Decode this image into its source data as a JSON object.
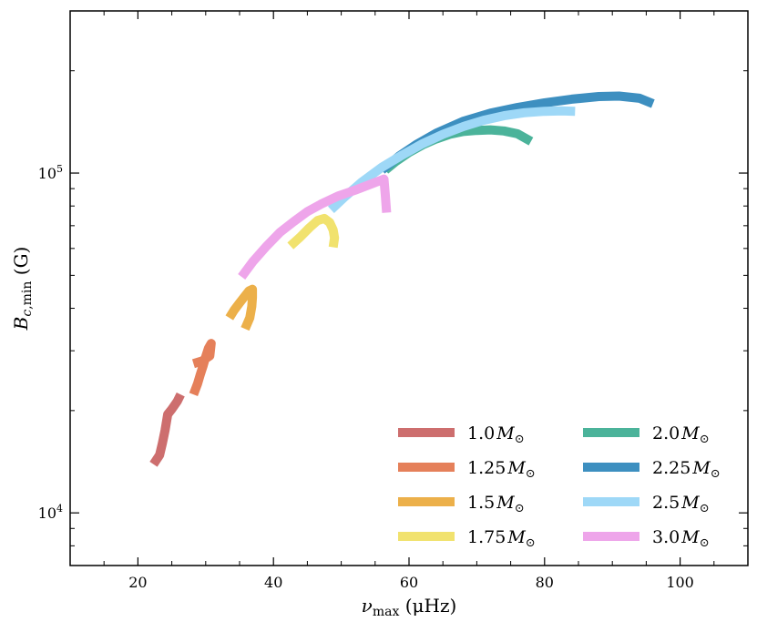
{
  "chart_data": {
    "type": "line",
    "title": "",
    "xlabel": "νmax (μHz)",
    "ylabel": "Bc,min (G)",
    "xlim": [
      10,
      110
    ],
    "ylim": [
      7000,
      300000
    ],
    "yscale": "log",
    "x_ticks": [
      20,
      40,
      60,
      80,
      100
    ],
    "x_tick_labels": [
      "20",
      "40",
      "60",
      "80",
      "100"
    ],
    "y_ticks": [
      10000,
      100000
    ],
    "y_tick_labels": [
      "10^4",
      "10^5"
    ],
    "legend_position": "lower-right",
    "legend_columns": 2,
    "series": [
      {
        "name": "1.0 M⊙",
        "color": "#cd6e6e",
        "x": [
          22.3,
          23.2,
          23.6,
          24.0,
          24.4,
          25.0,
          25.8,
          26.3
        ],
        "y": [
          13900,
          14800,
          16000,
          17500,
          19500,
          20200,
          21300,
          22300
        ]
      },
      {
        "name": "1.25 M⊙",
        "color": "#e5805a",
        "x": [
          28.2,
          28.8,
          29.2,
          29.6,
          30.0,
          30.4,
          30.8,
          30.6,
          29.5,
          28.2
        ],
        "y": [
          22300,
          24000,
          25500,
          27000,
          28800,
          30500,
          31500,
          29000,
          28000,
          27500
        ]
      },
      {
        "name": "1.5 M⊙",
        "color": "#ecb04a",
        "x": [
          33.5,
          34.2,
          35.0,
          35.8,
          36.4,
          36.9,
          36.9,
          36.8,
          36.5,
          35.8
        ],
        "y": [
          37500,
          39500,
          41500,
          43500,
          45000,
          45500,
          43000,
          40500,
          37500,
          34800
        ]
      },
      {
        "name": "1.75 M⊙",
        "color": "#f1e26e",
        "x": [
          42.5,
          44.0,
          45.3,
          46.5,
          47.5,
          48.3,
          48.8,
          49.0,
          48.8
        ],
        "y": [
          61000,
          65000,
          69000,
          72500,
          73500,
          71500,
          68000,
          64500,
          60500
        ]
      },
      {
        "name": "2.0 M⊙",
        "color": "#4bb39a",
        "x": [
          56.5,
          58.0,
          60.0,
          62.0,
          64.0,
          66.0,
          68.0,
          70.0,
          72.0,
          74.0,
          76.0,
          78.0
        ],
        "y": [
          102000,
          108000,
          115000,
          121000,
          126000,
          130000,
          132500,
          133500,
          134000,
          133000,
          130500,
          124000
        ]
      },
      {
        "name": "2.25 M⊙",
        "color": "#3d8fc0",
        "x": [
          56.0,
          58.5,
          61.0,
          64.0,
          68.0,
          72.0,
          76.0,
          80.0,
          84.0,
          88.0,
          91.0,
          94.0,
          96.0
        ],
        "y": [
          102000,
          112000,
          121000,
          131000,
          142000,
          150000,
          156000,
          161000,
          165000,
          168000,
          168500,
          166000,
          160000
        ]
      },
      {
        "name": "2.5 M⊙",
        "color": "#9ed8f7",
        "x": [
          48.5,
          50.5,
          53.0,
          56.0,
          59.0,
          62.0,
          65.0,
          68.0,
          71.0,
          74.0,
          77.0,
          80.0,
          82.5,
          84.5
        ],
        "y": [
          78000,
          85000,
          94000,
          104000,
          113000,
          122000,
          130000,
          137000,
          143000,
          147500,
          150500,
          152000,
          152500,
          152000
        ]
      },
      {
        "name": "3.0 M⊙",
        "color": "#eea5ea",
        "x": [
          35.3,
          37.0,
          39.0,
          41.0,
          43.0,
          45.0,
          47.0,
          49.5,
          52.0,
          54.5,
          56.3,
          56.5,
          56.7
        ],
        "y": [
          49500,
          55000,
          61000,
          67000,
          72000,
          77000,
          81000,
          85500,
          89000,
          93000,
          96000,
          86000,
          76500
        ]
      }
    ]
  }
}
